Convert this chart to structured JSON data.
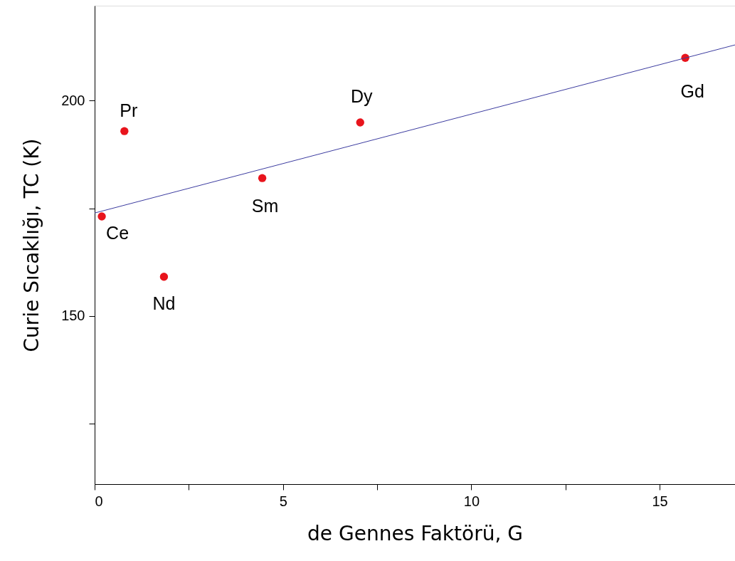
{
  "chart_data": {
    "type": "scatter",
    "xlabel": "de Gennes Faktörü, G",
    "ylabel": "Curie Sıcaklığı, TC (K)",
    "x": [
      0.19,
      0.79,
      1.84,
      4.45,
      7.05,
      15.68
    ],
    "series": [
      {
        "color": "#e8141c",
        "marker": "circle",
        "values": [
          173.1,
          192.9,
          159.1,
          182.0,
          194.9,
          209.9
        ]
      },
      {
        "type": "line",
        "color": "#3c3ca0",
        "line_style": "solid",
        "x": [
          0,
          17
        ],
        "values": [
          173.9,
          212.9
        ]
      }
    ],
    "annotations": [
      {
        "text": "Ce",
        "x": 0.19,
        "y": 173.1
      },
      {
        "text": "Pr",
        "x": 0.79,
        "y": 192.9
      },
      {
        "text": "Nd",
        "x": 1.84,
        "y": 159.1
      },
      {
        "text": "Sm",
        "x": 4.45,
        "y": 182.0
      },
      {
        "text": "Dy",
        "x": 7.05,
        "y": 194.9
      },
      {
        "text": "Gd",
        "x": 15.68,
        "y": 209.9
      }
    ],
    "xlim": [
      0,
      17
    ],
    "ylim": [
      111,
      222
    ],
    "xticks": [
      0,
      {
        "value": 2.5,
        "label": null
      },
      5,
      {
        "value": 7.5,
        "label": null
      },
      10,
      {
        "value": 12.5,
        "label": null
      },
      15
    ],
    "yticks": [
      {
        "value": 125,
        "label": null
      },
      150,
      {
        "value": 175,
        "label": null
      },
      200
    ],
    "grid": false
  }
}
